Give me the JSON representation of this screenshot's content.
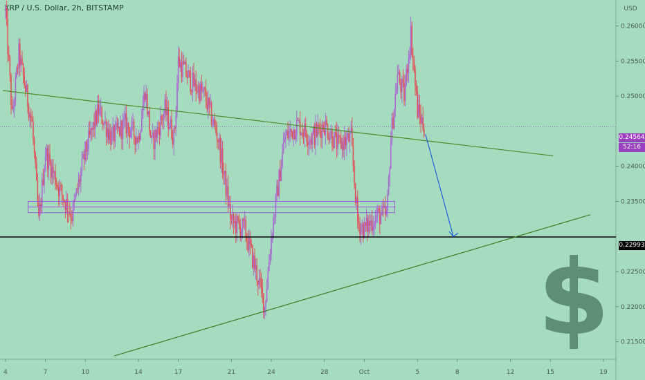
{
  "header": {
    "symbol": "XRP / U.S. Dollar, 2h, BITSTAMP",
    "currency": "USD"
  },
  "price_axis": {
    "current_price": "0.24564",
    "countdown": "52:16",
    "support_level": "0.22993"
  },
  "colors": {
    "background": "#a5dcbf",
    "candle_down": "#e0525a",
    "candle_up": "#a86ad0",
    "trendline": "#4f8a2a",
    "support": "#000000",
    "arrow": "#1d5fd6",
    "box": "#9b59d6",
    "price_badge": "#9b3fc1"
  },
  "watermark": {
    "glyph": "$",
    "icon": "dollar-sign-icon"
  },
  "chart_data": {
    "type": "candlestick",
    "title": "XRP / U.S. Dollar, 2h, BITSTAMP",
    "ylim": [
      0.2125,
      0.2637
    ],
    "y_ticks": [
      "0.21500",
      "0.22000",
      "0.22500",
      "0.23500",
      "0.24000",
      "0.25000",
      "0.25500",
      "0.26000"
    ],
    "x_ticks": [
      "4",
      "7",
      "10",
      "14",
      "17",
      "21",
      "24",
      "28",
      "Oct",
      "5",
      "8",
      "12",
      "15",
      "19"
    ],
    "price_path": [
      {
        "d": 0,
        "p": 0.262
      },
      {
        "d": 0.5,
        "p": 0.247
      },
      {
        "d": 1,
        "p": 0.256
      },
      {
        "d": 2,
        "p": 0.246
      },
      {
        "d": 2.5,
        "p": 0.232
      },
      {
        "d": 3,
        "p": 0.242
      },
      {
        "d": 4,
        "p": 0.237
      },
      {
        "d": 5,
        "p": 0.233
      },
      {
        "d": 6,
        "p": 0.242
      },
      {
        "d": 7,
        "p": 0.248
      },
      {
        "d": 8,
        "p": 0.244
      },
      {
        "d": 9,
        "p": 0.246
      },
      {
        "d": 10,
        "p": 0.244
      },
      {
        "d": 10.5,
        "p": 0.251
      },
      {
        "d": 11,
        "p": 0.243
      },
      {
        "d": 12,
        "p": 0.248
      },
      {
        "d": 12.7,
        "p": 0.244
      },
      {
        "d": 13,
        "p": 0.255
      },
      {
        "d": 14,
        "p": 0.252
      },
      {
        "d": 15,
        "p": 0.25
      },
      {
        "d": 16,
        "p": 0.244
      },
      {
        "d": 17,
        "p": 0.232
      },
      {
        "d": 18,
        "p": 0.231
      },
      {
        "d": 19,
        "p": 0.224
      },
      {
        "d": 19.5,
        "p": 0.22
      },
      {
        "d": 20,
        "p": 0.23
      },
      {
        "d": 21,
        "p": 0.244
      },
      {
        "d": 22,
        "p": 0.246
      },
      {
        "d": 23,
        "p": 0.244
      },
      {
        "d": 24,
        "p": 0.246
      },
      {
        "d": 25,
        "p": 0.243
      },
      {
        "d": 26,
        "p": 0.244
      },
      {
        "d": 26.5,
        "p": 0.232
      },
      {
        "d": 27,
        "p": 0.231
      },
      {
        "d": 28,
        "p": 0.233
      },
      {
        "d": 28.7,
        "p": 0.233
      },
      {
        "d": 29,
        "p": 0.244
      },
      {
        "d": 29.5,
        "p": 0.253
      },
      {
        "d": 30,
        "p": 0.25
      },
      {
        "d": 30.5,
        "p": 0.259
      },
      {
        "d": 31,
        "p": 0.248
      },
      {
        "d": 31.5,
        "p": 0.2456
      }
    ],
    "annotations": {
      "support_line": 0.22993,
      "descending_trendline": [
        {
          "d": -0.2,
          "p": 0.2508
        },
        {
          "d": 41.2,
          "p": 0.2415
        }
      ],
      "ascending_trendline": [
        {
          "d": 8.2,
          "p": 0.213
        },
        {
          "d": 44.0,
          "p": 0.2331
        }
      ],
      "projection_arrow": [
        {
          "d": 31.6,
          "p": 0.2446
        },
        {
          "d": 33.7,
          "p": 0.23
        }
      ],
      "range_box": {
        "d_start": 1.7,
        "d_end": 29.3,
        "p_low": 0.2334,
        "p_mid": 0.2342,
        "p_high": 0.235
      }
    }
  }
}
